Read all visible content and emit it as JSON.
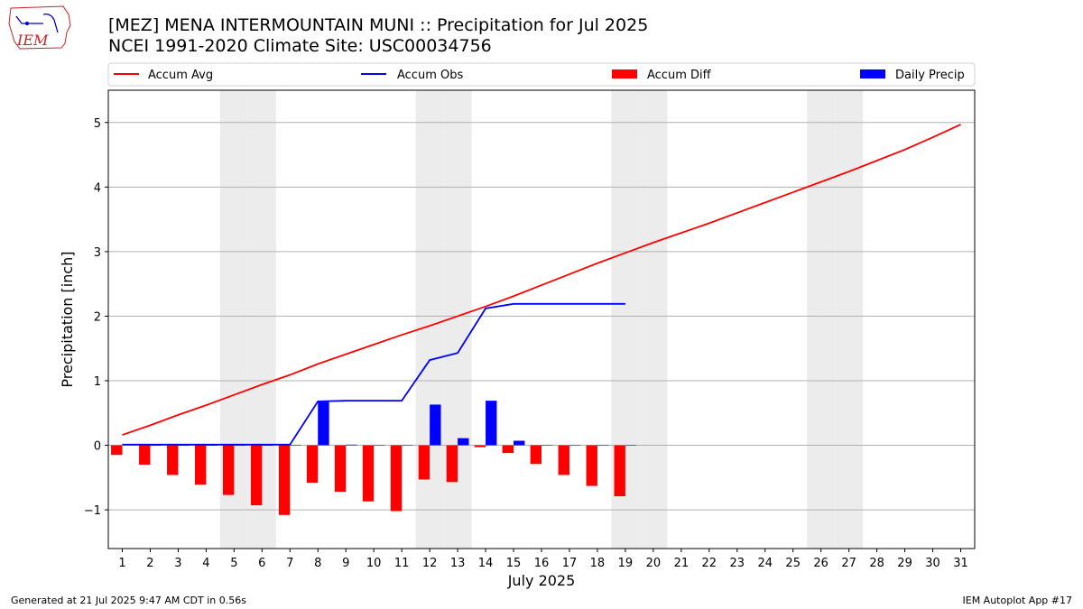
{
  "header": {
    "title": "[MEZ] MENA INTERMOUNTAIN MUNI :: Precipitation for Jul 2025",
    "subtitle": "NCEI 1991-2020 Climate Site: USC00034756",
    "logo_text": "IEM"
  },
  "footer": {
    "left": "Generated at 21 Jul 2025 9:47 AM CDT in 0.56s",
    "right": "IEM Autoplot App #17"
  },
  "chart_data": {
    "type": "bar",
    "xlabel": "July 2025",
    "ylabel": "Precipitation [inch]",
    "xlim": [
      0.5,
      31.5
    ],
    "ylim": [
      -1.6,
      5.5
    ],
    "yticks": [
      -1,
      0,
      1,
      2,
      3,
      4,
      5
    ],
    "ytick_labels": [
      "−1",
      "0",
      "1",
      "2",
      "3",
      "4",
      "5"
    ],
    "days": [
      1,
      2,
      3,
      4,
      5,
      6,
      7,
      8,
      9,
      10,
      11,
      12,
      13,
      14,
      15,
      16,
      17,
      18,
      19,
      20,
      21,
      22,
      23,
      24,
      25,
      26,
      27,
      28,
      29,
      30,
      31
    ],
    "grid": "horizontal",
    "legend_position": "top",
    "weekend_days": [
      5,
      6,
      12,
      13,
      19,
      20,
      26,
      27
    ],
    "series": [
      {
        "name": "Accum Avg",
        "kind": "line",
        "color": "#ff0000",
        "x": [
          1,
          2,
          3,
          4,
          5,
          6,
          7,
          8,
          9,
          10,
          11,
          12,
          13,
          14,
          15,
          16,
          17,
          18,
          19,
          20,
          21,
          22,
          23,
          24,
          25,
          26,
          27,
          28,
          29,
          30,
          31
        ],
        "values": [
          0.16,
          0.31,
          0.47,
          0.62,
          0.78,
          0.94,
          1.09,
          1.26,
          1.41,
          1.56,
          1.71,
          1.85,
          2.0,
          2.15,
          2.31,
          2.48,
          2.65,
          2.82,
          2.98,
          3.14,
          3.29,
          3.44,
          3.6,
          3.76,
          3.92,
          4.08,
          4.24,
          4.41,
          4.58,
          4.77,
          4.97
        ]
      },
      {
        "name": "Accum Obs",
        "kind": "line",
        "color": "#0000ff",
        "x": [
          1,
          2,
          3,
          4,
          5,
          6,
          7,
          8,
          9,
          10,
          11,
          12,
          13,
          14,
          15,
          16,
          17,
          18,
          19
        ],
        "values": [
          0.01,
          0.01,
          0.01,
          0.01,
          0.01,
          0.01,
          0.01,
          0.68,
          0.69,
          0.69,
          0.69,
          1.32,
          1.43,
          2.12,
          2.19,
          2.19,
          2.19,
          2.19,
          2.19
        ]
      },
      {
        "name": "Accum Diff",
        "kind": "bar",
        "color": "#ff0000",
        "x": [
          1,
          2,
          3,
          4,
          5,
          6,
          7,
          8,
          9,
          10,
          11,
          12,
          13,
          14,
          15,
          16,
          17,
          18,
          19
        ],
        "values": [
          -0.15,
          -0.3,
          -0.46,
          -0.61,
          -0.77,
          -0.93,
          -1.08,
          -0.58,
          -0.72,
          -0.87,
          -1.02,
          -0.53,
          -0.57,
          -0.03,
          -0.12,
          -0.29,
          -0.46,
          -0.63,
          -0.79
        ]
      },
      {
        "name": "Daily Precip",
        "kind": "bar",
        "color": "#0000ff",
        "x": [
          1,
          2,
          3,
          4,
          5,
          6,
          7,
          8,
          9,
          10,
          11,
          12,
          13,
          14,
          15,
          16,
          17,
          18,
          19
        ],
        "values": [
          0.01,
          0,
          0,
          0,
          0,
          0,
          0,
          0.67,
          0.01,
          0,
          0,
          0.63,
          0.11,
          0.69,
          0.07,
          0,
          0,
          0,
          0
        ]
      }
    ]
  }
}
